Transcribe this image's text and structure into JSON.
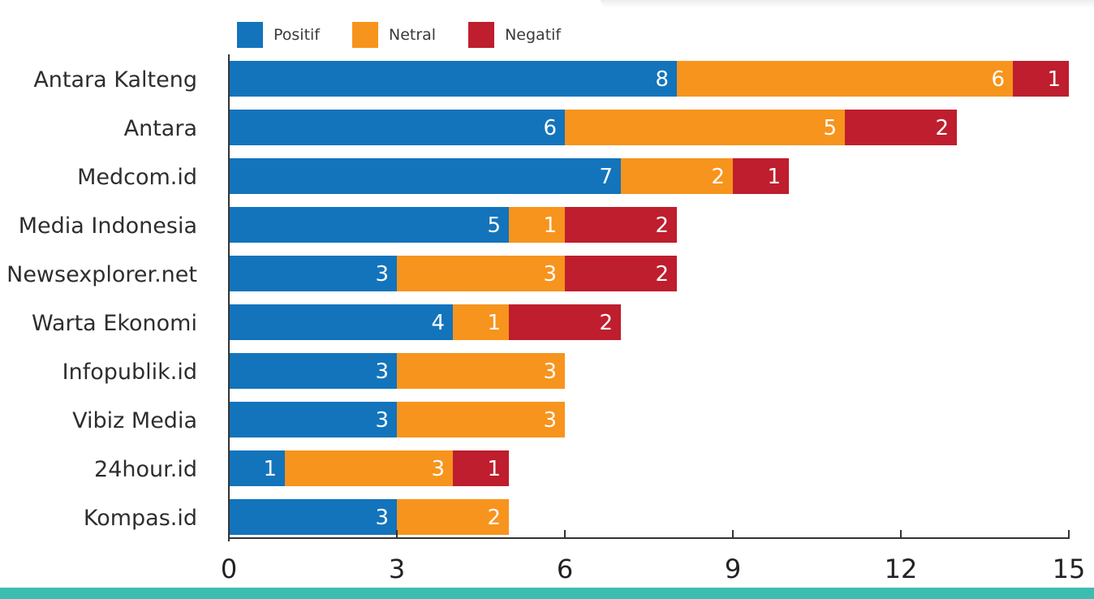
{
  "colors": {
    "positif": "#1374BC",
    "netral": "#F7941D",
    "negatif": "#BE1E2D",
    "axis": "#333333",
    "bottom_band": "#3DBDB1"
  },
  "legend": {
    "items": [
      {
        "key": "positif",
        "label": "Positif"
      },
      {
        "key": "netral",
        "label": "Netral"
      },
      {
        "key": "negatif",
        "label": "Negatif"
      }
    ]
  },
  "chart_data": {
    "type": "bar",
    "orientation": "horizontal",
    "stacked": true,
    "categories": [
      "Antara Kalteng",
      "Antara",
      "Medcom.id",
      "Media Indonesia",
      "Newsexplorer.net",
      "Warta Ekonomi",
      "Infopublik.id",
      "Vibiz Media",
      "24hour.id",
      "Kompas.id"
    ],
    "series": [
      {
        "name": "Positif",
        "values": [
          8,
          6,
          7,
          5,
          3,
          4,
          3,
          3,
          1,
          3
        ]
      },
      {
        "name": "Netral",
        "values": [
          6,
          5,
          2,
          1,
          3,
          1,
          3,
          3,
          3,
          2
        ]
      },
      {
        "name": "Negatif",
        "values": [
          1,
          2,
          1,
          2,
          2,
          2,
          0,
          0,
          1,
          0
        ]
      }
    ],
    "xlim": [
      0,
      15
    ],
    "xticks": [
      "0",
      "3",
      "6",
      "9",
      "12",
      "15"
    ],
    "legend_position": "top-left",
    "grid": false
  }
}
